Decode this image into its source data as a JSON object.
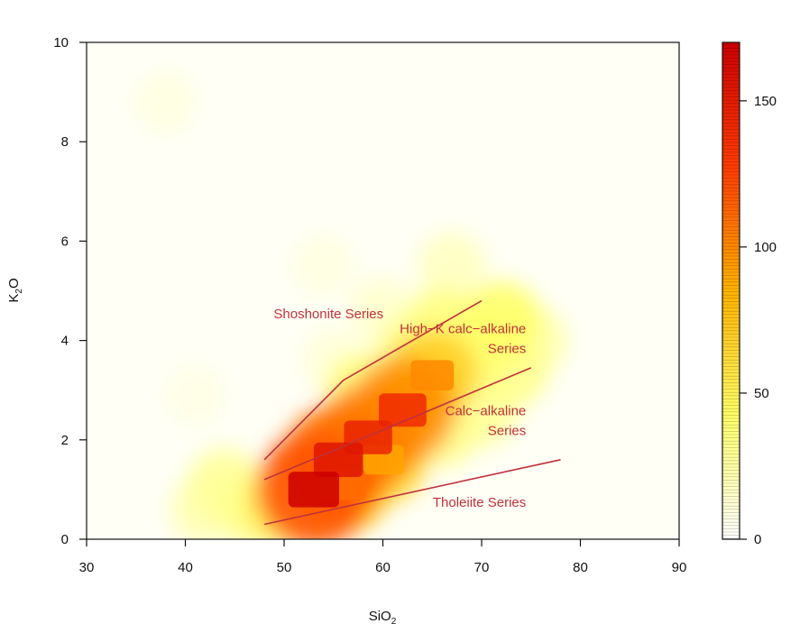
{
  "chart_data": {
    "type": "heatmap",
    "title": "",
    "xlabel": {
      "base": "SiO",
      "sub": "2"
    },
    "ylabel": {
      "base": "K",
      "sub": "2",
      "tail": "O"
    },
    "xlim": [
      30,
      90
    ],
    "ylim": [
      0,
      10
    ],
    "x_ticks": [
      30,
      40,
      50,
      60,
      70,
      80,
      90
    ],
    "y_ticks": [
      0,
      2,
      4,
      6,
      8,
      10
    ],
    "grid": false,
    "colorbar": {
      "range": [
        0,
        170
      ],
      "ticks": [
        0,
        50,
        100,
        150
      ],
      "colors": [
        "#ffffff",
        "#ffff66",
        "#ffb300",
        "#ff3b00",
        "#cc0000"
      ]
    },
    "density": [
      {
        "x": 53,
        "y": 1.0,
        "v": 170
      },
      {
        "x": 55.5,
        "y": 1.6,
        "v": 155
      },
      {
        "x": 58.5,
        "y": 2.05,
        "v": 145
      },
      {
        "x": 62,
        "y": 2.6,
        "v": 140
      },
      {
        "x": 65,
        "y": 3.3,
        "v": 100
      },
      {
        "x": 60,
        "y": 1.6,
        "v": 90
      },
      {
        "x": 56,
        "y": 1.1,
        "v": 110
      },
      {
        "x": 50,
        "y": 0.7,
        "v": 70
      },
      {
        "x": 47,
        "y": 0.6,
        "v": 45
      },
      {
        "x": 44,
        "y": 1.1,
        "v": 40
      },
      {
        "x": 42,
        "y": 0.6,
        "v": 30
      },
      {
        "x": 58,
        "y": 3.0,
        "v": 50
      },
      {
        "x": 63,
        "y": 3.8,
        "v": 45
      },
      {
        "x": 66,
        "y": 4.3,
        "v": 50
      },
      {
        "x": 69,
        "y": 3.8,
        "v": 55
      },
      {
        "x": 72,
        "y": 4.4,
        "v": 60
      },
      {
        "x": 73,
        "y": 3.4,
        "v": 45
      },
      {
        "x": 70,
        "y": 2.6,
        "v": 40
      },
      {
        "x": 66,
        "y": 2.2,
        "v": 45
      },
      {
        "x": 75,
        "y": 4.0,
        "v": 35
      },
      {
        "x": 67,
        "y": 5.5,
        "v": 25
      },
      {
        "x": 60,
        "y": 4.6,
        "v": 20
      },
      {
        "x": 55,
        "y": 3.6,
        "v": 15
      },
      {
        "x": 54,
        "y": 5.5,
        "v": 12
      },
      {
        "x": 38,
        "y": 8.8,
        "v": 12
      },
      {
        "x": 41,
        "y": 2.9,
        "v": 10
      }
    ],
    "boundary_lines": [
      {
        "name": "shoshonite-boundary",
        "points": [
          [
            48,
            1.6
          ],
          [
            56,
            3.2
          ],
          [
            70,
            4.8
          ]
        ]
      },
      {
        "name": "high-k-boundary",
        "points": [
          [
            48,
            1.2
          ],
          [
            75,
            3.45
          ]
        ]
      },
      {
        "name": "calc-alkaline-boundary",
        "points": [
          [
            48,
            0.3
          ],
          [
            78,
            1.6
          ]
        ]
      }
    ],
    "annotations": [
      {
        "name": "shoshonite-label",
        "lines": [
          "Shoshonite Series"
        ],
        "x": 54.5,
        "y": 4.45,
        "anchor": "middle"
      },
      {
        "name": "high-k-label",
        "lines": [
          "High−K calc−alkaline",
          "Series"
        ],
        "x": 74.5,
        "y": 4.15,
        "anchor": "end"
      },
      {
        "name": "calc-alkaline-label",
        "lines": [
          "Calc−alkaline",
          "Series"
        ],
        "x": 74.5,
        "y": 2.5,
        "anchor": "end"
      },
      {
        "name": "tholeiite-label",
        "lines": [
          "Tholeiite Series"
        ],
        "x": 74.5,
        "y": 0.65,
        "anchor": "end"
      }
    ],
    "line_color": "#c0313a",
    "label_color": "#c0313a"
  }
}
